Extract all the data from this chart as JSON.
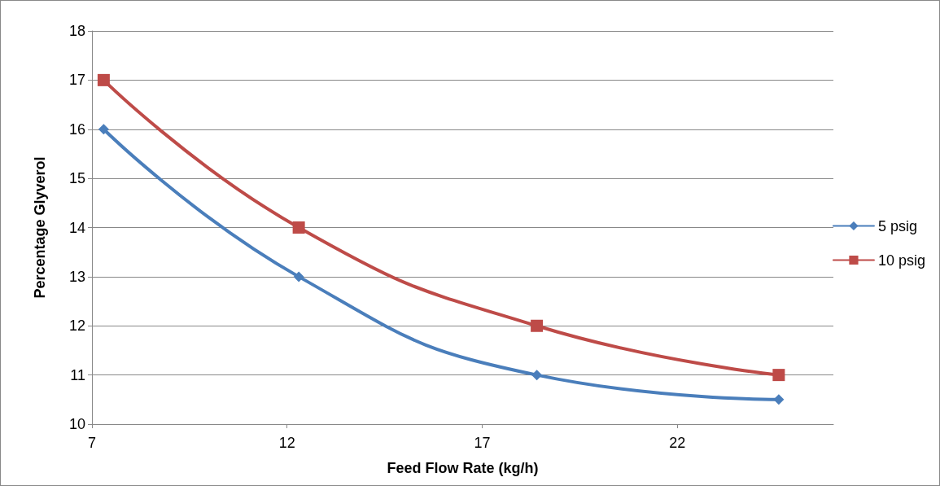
{
  "chart_data": {
    "type": "line",
    "xlabel": "Feed Flow Rate (kg/h)",
    "ylabel": "Percentage Glyverol",
    "x": [
      7.3,
      12.3,
      18.4,
      24.6
    ],
    "series": [
      {
        "name": "5 psig",
        "color": "#4a7ebb",
        "marker": "diamond",
        "values": [
          16,
          13,
          11,
          10.5
        ]
      },
      {
        "name": "10 psig",
        "color": "#be4b48",
        "marker": "square",
        "values": [
          17,
          14,
          12,
          11
        ]
      }
    ],
    "xlim": [
      7,
      26
    ],
    "xticks": [
      7,
      12,
      17,
      22
    ],
    "ylim": [
      10,
      18
    ],
    "yticks": [
      10,
      11,
      12,
      13,
      14,
      15,
      16,
      17,
      18
    ],
    "grid": "y",
    "legend": "right"
  }
}
